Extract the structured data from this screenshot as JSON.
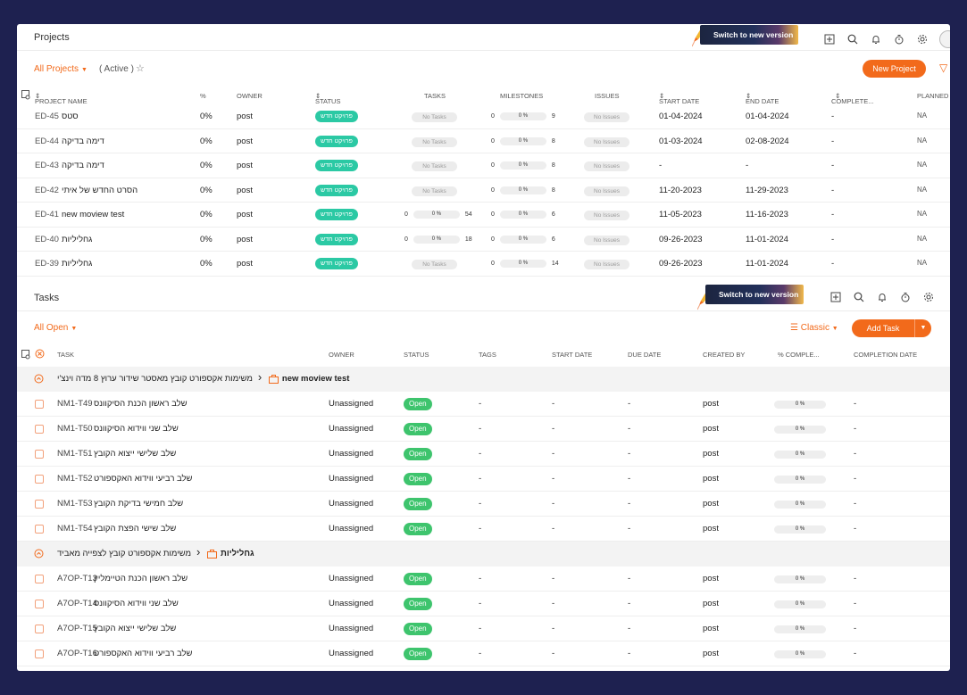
{
  "projects": {
    "title": "Projects",
    "switch_label": "Switch to new version",
    "filter": "All Projects",
    "active": "( Active )",
    "new_button": "New Project",
    "columns": {
      "name": "PROJECT NAME",
      "pct": "%",
      "owner": "OWNER",
      "status": "STATUS",
      "tasks": "TASKS",
      "milestones": "MILESTONES",
      "issues": "ISSUES",
      "start": "START DATE",
      "end": "END DATE",
      "complete": "COMPLETE...",
      "planned": "PLANNED"
    },
    "rows": [
      {
        "id": "ED-45",
        "name": "סטס",
        "pct": "0%",
        "owner": "post",
        "status": "פרויקט חדש",
        "tasks": "No Tasks",
        "ms_left": "0",
        "ms_pct": "0 %",
        "ms_right": "9",
        "issues": "No Issues",
        "start": "01-04-2024",
        "end": "01-04-2024",
        "complete": "-",
        "planned": "NA"
      },
      {
        "id": "ED-44",
        "name": "דימה בדיקה",
        "pct": "0%",
        "owner": "post",
        "status": "פרויקט חדש",
        "tasks": "No Tasks",
        "ms_left": "0",
        "ms_pct": "0 %",
        "ms_right": "8",
        "issues": "No Issues",
        "start": "01-03-2024",
        "end": "02-08-2024",
        "complete": "-",
        "planned": "NA"
      },
      {
        "id": "ED-43",
        "name": "דימה בדיקה",
        "pct": "0%",
        "owner": "post",
        "status": "פרויקט חדש",
        "tasks": "No Tasks",
        "ms_left": "0",
        "ms_pct": "0 %",
        "ms_right": "8",
        "issues": "No Issues",
        "start": "-",
        "end": "-",
        "complete": "-",
        "planned": "NA"
      },
      {
        "id": "ED-42",
        "name": "הסרט החדש של איתי",
        "pct": "0%",
        "owner": "post",
        "status": "פרויקט חדש",
        "tasks": "No Tasks",
        "ms_left": "0",
        "ms_pct": "0 %",
        "ms_right": "8",
        "issues": "No Issues",
        "start": "11-20-2023",
        "end": "11-29-2023",
        "complete": "-",
        "planned": "NA"
      },
      {
        "id": "ED-41",
        "name": "new moview test",
        "pct": "0%",
        "owner": "post",
        "status": "פרויקט חדש",
        "tasks_prog": {
          "left": "0",
          "pct": "0 %",
          "right": "54"
        },
        "ms_left": "0",
        "ms_pct": "0 %",
        "ms_right": "6",
        "issues": "No Issues",
        "start": "11-05-2023",
        "end": "11-16-2023",
        "complete": "-",
        "planned": "NA"
      },
      {
        "id": "ED-40",
        "name": "גחליליות",
        "pct": "0%",
        "owner": "post",
        "status": "פרויקט חדש",
        "tasks_prog": {
          "left": "0",
          "pct": "0 %",
          "right": "18"
        },
        "ms_left": "0",
        "ms_pct": "0 %",
        "ms_right": "6",
        "issues": "No Issues",
        "start": "09-26-2023",
        "end": "11-01-2024",
        "complete": "-",
        "planned": "NA"
      },
      {
        "id": "ED-39",
        "name": "גחליליות",
        "pct": "0%",
        "owner": "post",
        "status": "פרויקט חדש",
        "tasks": "No Tasks",
        "ms_left": "0",
        "ms_pct": "0 %",
        "ms_right": "14",
        "issues": "No Issues",
        "start": "09-26-2023",
        "end": "11-01-2024",
        "complete": "-",
        "planned": "NA"
      }
    ]
  },
  "tasks": {
    "title": "Tasks",
    "switch_label": "Switch to new version",
    "filter": "All Open",
    "view": "Classic",
    "add_button": "Add Task",
    "columns": {
      "task": "TASK",
      "owner": "OWNER",
      "status": "STATUS",
      "tags": "TAGS",
      "start": "START DATE",
      "due": "DUE DATE",
      "created": "CREATED BY",
      "pct": "% COMPLE...",
      "completion": "COMPLETION DATE"
    },
    "groups": [
      {
        "path": "משימות אקספורט קובץ מאסטר שידור ערוץ 8 מדה וינצ'י",
        "project": "new moview test",
        "rows": [
          {
            "id": "NM1-T49",
            "name": "שלב ראשון הכנת הסיקוונס",
            "owner": "Unassigned",
            "status": "Open",
            "tags": "-",
            "start": "-",
            "due": "-",
            "created": "post",
            "pct": "0 %",
            "completion": "-"
          },
          {
            "id": "NM1-T50",
            "name": "שלב שני ווידוא הסיקוונס",
            "owner": "Unassigned",
            "status": "Open",
            "tags": "-",
            "start": "-",
            "due": "-",
            "created": "post",
            "pct": "0 %",
            "completion": "-"
          },
          {
            "id": "NM1-T51",
            "name": "שלב שלישי ייצוא הקובץ",
            "owner": "Unassigned",
            "status": "Open",
            "tags": "-",
            "start": "-",
            "due": "-",
            "created": "post",
            "pct": "0 %",
            "completion": "-"
          },
          {
            "id": "NM1-T52",
            "name": "שלב רביעי ווידוא האקספורט",
            "owner": "Unassigned",
            "status": "Open",
            "tags": "-",
            "start": "-",
            "due": "-",
            "created": "post",
            "pct": "0 %",
            "completion": "-"
          },
          {
            "id": "NM1-T53",
            "name": "שלב חמישי בדיקת הקובץ",
            "owner": "Unassigned",
            "status": "Open",
            "tags": "-",
            "start": "-",
            "due": "-",
            "created": "post",
            "pct": "0 %",
            "completion": "-"
          },
          {
            "id": "NM1-T54",
            "name": "שלב שישי הפצת הקובץ",
            "owner": "Unassigned",
            "status": "Open",
            "tags": "-",
            "start": "-",
            "due": "-",
            "created": "post",
            "pct": "0 %",
            "completion": "-"
          }
        ]
      },
      {
        "path": "משימות אקספורט קובץ לצפייה מאביד",
        "project": "גחליליות",
        "rows": [
          {
            "id": "A7OP-T13",
            "name": "שלב ראשון הכנת הטיימליין",
            "owner": "Unassigned",
            "status": "Open",
            "tags": "-",
            "start": "-",
            "due": "-",
            "created": "post",
            "pct": "0 %",
            "completion": "-"
          },
          {
            "id": "A7OP-T14",
            "name": "שלב שני ווידוא הסיקוונס",
            "owner": "Unassigned",
            "status": "Open",
            "tags": "-",
            "start": "-",
            "due": "-",
            "created": "post",
            "pct": "0 %",
            "completion": "-"
          },
          {
            "id": "A7OP-T15",
            "name": "שלב שלישי ייצוא הקובץ",
            "owner": "Unassigned",
            "status": "Open",
            "tags": "-",
            "start": "-",
            "due": "-",
            "created": "post",
            "pct": "0 %",
            "completion": "-"
          },
          {
            "id": "A7OP-T16",
            "name": "שלב רביעי ווידוא האקספורט",
            "owner": "Unassigned",
            "status": "Open",
            "tags": "-",
            "start": "-",
            "due": "-",
            "created": "post",
            "pct": "0 %",
            "completion": "-"
          }
        ]
      }
    ]
  }
}
